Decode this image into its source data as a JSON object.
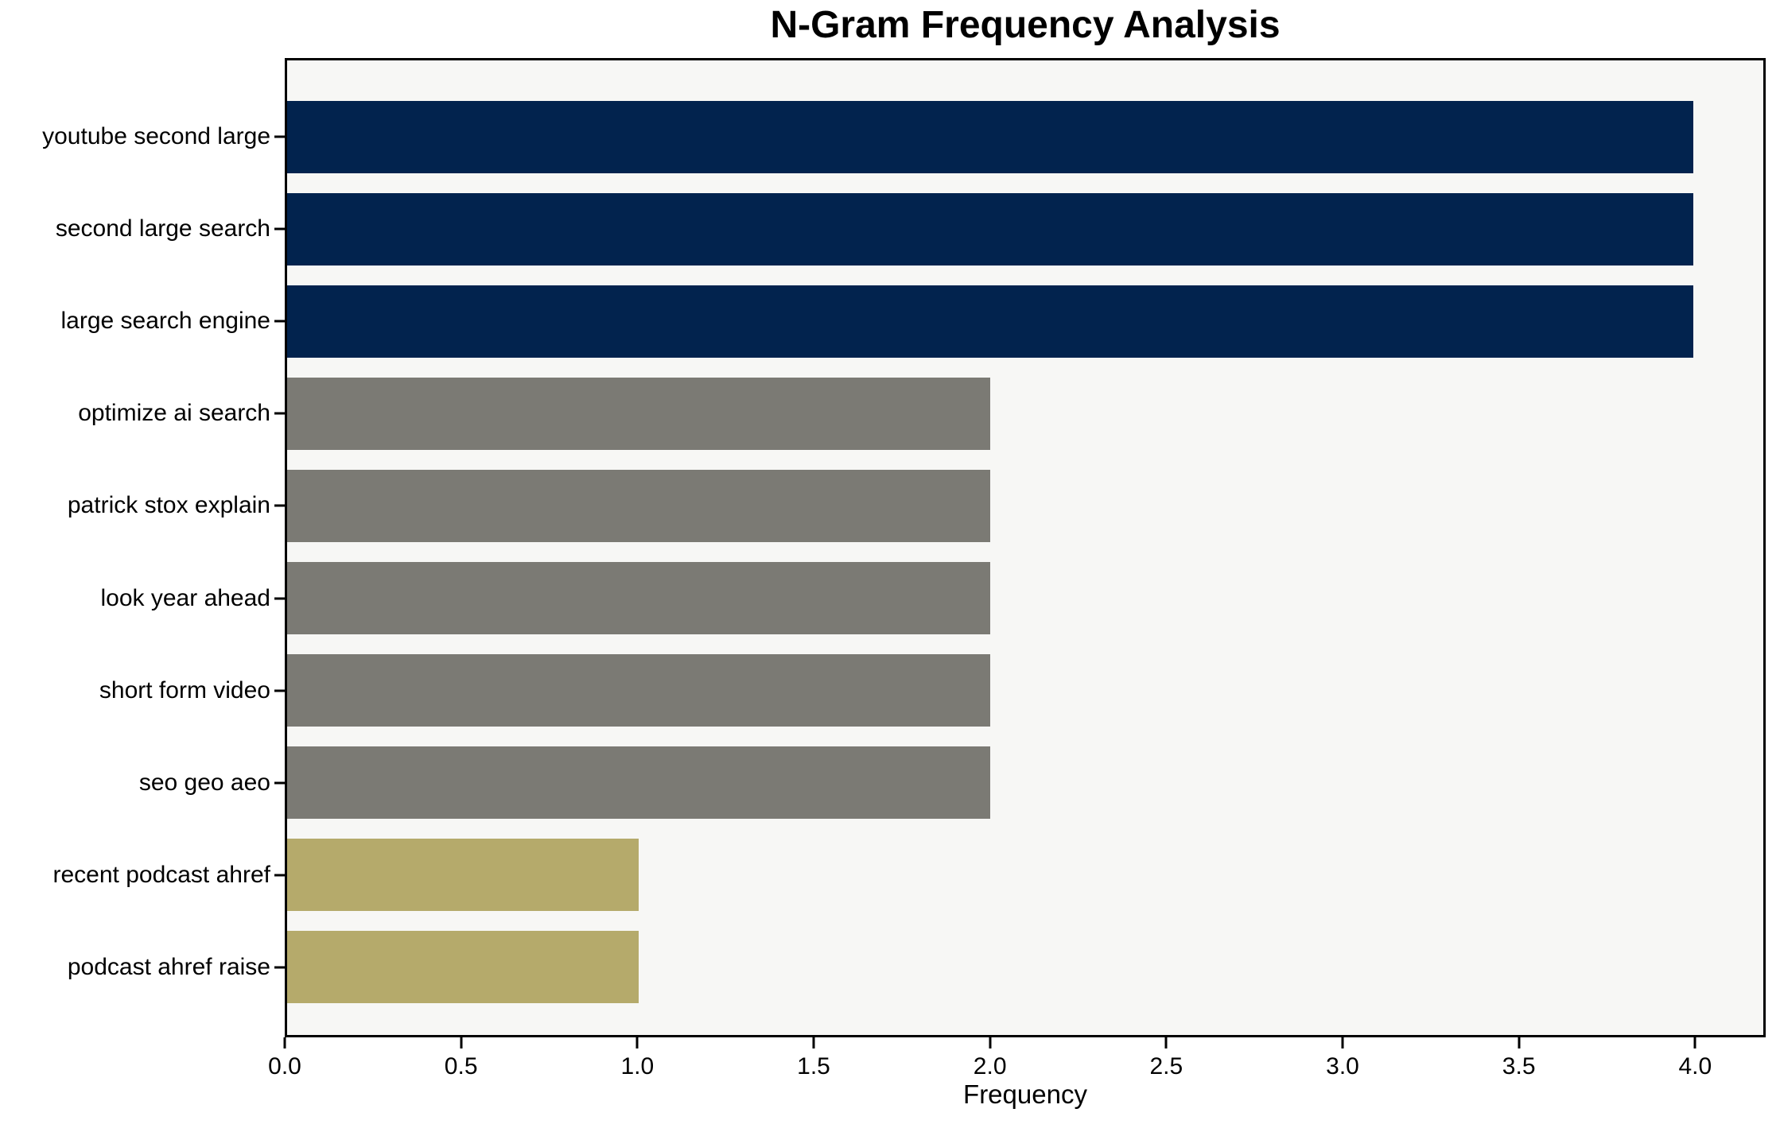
{
  "figure": {
    "background_color": "#ffffff",
    "plot_background_color": "#f7f7f5",
    "spine_color": "#000000"
  },
  "chart_data": {
    "type": "bar",
    "orientation": "horizontal",
    "title": "N-Gram Frequency Analysis",
    "xlabel": "Frequency",
    "ylabel": "",
    "categories": [
      "youtube second large",
      "second large search",
      "large search engine",
      "optimize ai search",
      "patrick stox explain",
      "look year ahead",
      "short form video",
      "seo geo aeo",
      "recent podcast ahref",
      "podcast ahref raise"
    ],
    "values": [
      4,
      4,
      4,
      2,
      2,
      2,
      2,
      2,
      1,
      1
    ],
    "bar_colors": [
      "#02234e",
      "#02234e",
      "#02234e",
      "#7b7a74",
      "#7b7a74",
      "#7b7a74",
      "#7b7a74",
      "#7b7a74",
      "#b5aa6b",
      "#b5aa6b"
    ],
    "color_legend": {
      "navy": "#02234e",
      "gray": "#7b7a74",
      "khaki": "#b5aa6b"
    },
    "xlim": [
      0,
      4.2
    ],
    "xticks": [
      "0.0",
      "0.5",
      "1.0",
      "1.5",
      "2.0",
      "2.5",
      "3.0",
      "3.5",
      "4.0"
    ],
    "grid": false,
    "legend_position": "none"
  }
}
